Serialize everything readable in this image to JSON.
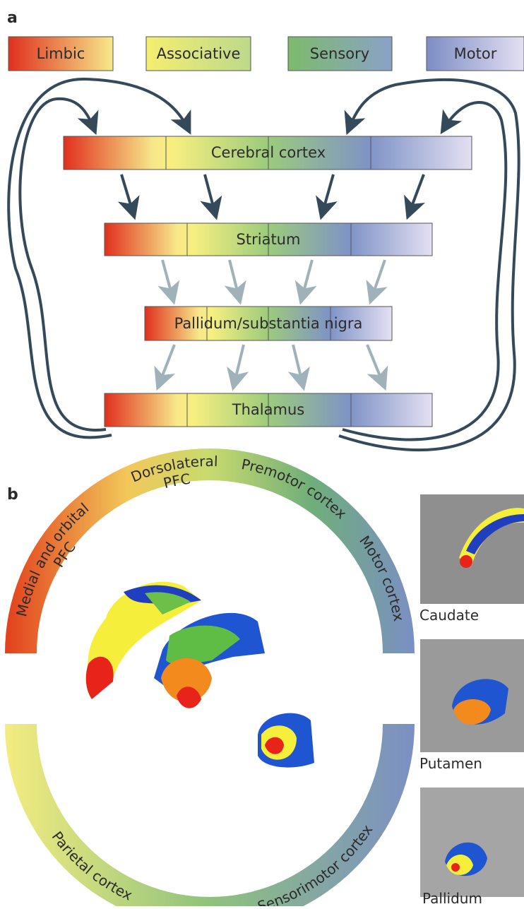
{
  "panel_a": {
    "label": "a",
    "legend": [
      "Limbic",
      "Associative",
      "Sensory",
      "Motor"
    ],
    "bars": [
      "Cerebral cortex",
      "Striatum",
      "Pallidum/substantia nigra",
      "Thalamus"
    ]
  },
  "panel_b": {
    "label": "b",
    "upper_arc": {
      "medial_orbital": [
        "Medial and orbital",
        "PFC"
      ],
      "dorsolateral": [
        "Dorsolateral",
        "PFC"
      ],
      "premotor": "Premotor cortex",
      "motor": "Motor cortex"
    },
    "lower_arc": {
      "parietal": "Parietal cortex",
      "sensorimotor": "Sensorimotor cortex"
    },
    "images": [
      "Caudate",
      "Putamen",
      "Pallidum"
    ]
  }
}
